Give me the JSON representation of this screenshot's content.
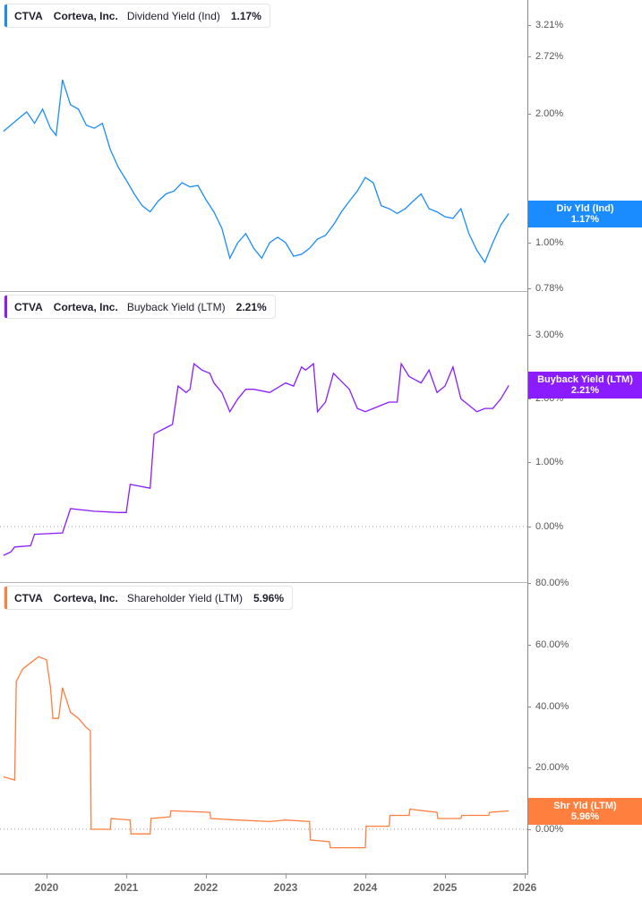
{
  "chart_data": [
    {
      "type": "line",
      "title": "CTVA Corteva, Inc. Dividend Yield (Ind)",
      "ticker": "CTVA",
      "company": "Corteva, Inc.",
      "metric": "Dividend Yield (Ind)",
      "current_value": "1.17%",
      "axis_label": "Div Yld (Ind)",
      "color": "#1a8cff",
      "scale": "log",
      "yticks": [
        "3.21%",
        "2.72%",
        "2.00%",
        "1.00%",
        "0.78%"
      ],
      "ylim": [
        0.78,
        3.4
      ],
      "x": [
        2019.46,
        2019.55,
        2019.65,
        2019.75,
        2019.85,
        2019.95,
        2020.05,
        2020.12,
        2020.2,
        2020.3,
        2020.4,
        2020.5,
        2020.6,
        2020.7,
        2020.8,
        2020.9,
        2021.0,
        2021.1,
        2021.2,
        2021.3,
        2021.4,
        2021.5,
        2021.6,
        2021.7,
        2021.8,
        2021.9,
        2022.0,
        2022.1,
        2022.2,
        2022.3,
        2022.4,
        2022.5,
        2022.6,
        2022.7,
        2022.8,
        2022.9,
        2023.0,
        2023.1,
        2023.2,
        2023.3,
        2023.4,
        2023.5,
        2023.6,
        2023.7,
        2023.8,
        2023.9,
        2024.0,
        2024.1,
        2024.2,
        2024.3,
        2024.4,
        2024.5,
        2024.6,
        2024.7,
        2024.8,
        2024.9,
        2025.0,
        2025.1,
        2025.2,
        2025.3,
        2025.4,
        2025.5,
        2025.6,
        2025.7,
        2025.8
      ],
      "values": [
        1.82,
        1.88,
        1.95,
        2.02,
        1.9,
        2.05,
        1.85,
        1.78,
        2.4,
        2.1,
        2.05,
        1.88,
        1.85,
        1.9,
        1.65,
        1.5,
        1.4,
        1.3,
        1.22,
        1.18,
        1.25,
        1.3,
        1.32,
        1.38,
        1.35,
        1.36,
        1.26,
        1.18,
        1.08,
        0.92,
        1.0,
        1.05,
        0.97,
        0.92,
        1.0,
        1.03,
        1.0,
        0.93,
        0.94,
        0.97,
        1.02,
        1.04,
        1.1,
        1.18,
        1.25,
        1.32,
        1.42,
        1.38,
        1.22,
        1.2,
        1.17,
        1.2,
        1.25,
        1.3,
        1.2,
        1.18,
        1.15,
        1.14,
        1.2,
        1.05,
        0.96,
        0.9,
        1.0,
        1.1,
        1.17
      ]
    },
    {
      "type": "line",
      "title": "CTVA Corteva, Inc. Buyback Yield (LTM)",
      "ticker": "CTVA",
      "company": "Corteva, Inc.",
      "metric": "Buyback Yield (LTM)",
      "current_value": "2.21%",
      "axis_label": "Buyback Yield (LTM)",
      "color": "#8a1cff",
      "scale": "linear",
      "yticks": [
        "3.00%",
        "2.00%",
        "1.00%",
        "0.00%"
      ],
      "ylim": [
        -0.5,
        3.7
      ],
      "x": [
        2019.46,
        2019.55,
        2019.6,
        2019.8,
        2019.85,
        2020.2,
        2020.3,
        2020.6,
        2020.9,
        2021.0,
        2021.05,
        2021.3,
        2021.35,
        2021.5,
        2021.58,
        2021.65,
        2021.75,
        2021.8,
        2021.85,
        2021.95,
        2022.05,
        2022.1,
        2022.2,
        2022.3,
        2022.4,
        2022.5,
        2022.6,
        2022.8,
        2023.0,
        2023.1,
        2023.2,
        2023.25,
        2023.35,
        2023.4,
        2023.5,
        2023.6,
        2023.8,
        2023.9,
        2024.0,
        2024.1,
        2024.2,
        2024.3,
        2024.4,
        2024.45,
        2024.55,
        2024.7,
        2024.8,
        2024.9,
        2025.0,
        2025.1,
        2025.2,
        2025.3,
        2025.4,
        2025.5,
        2025.6,
        2025.7,
        2025.8
      ],
      "values": [
        -0.45,
        -0.4,
        -0.32,
        -0.3,
        -0.12,
        -0.1,
        0.28,
        0.24,
        0.22,
        0.22,
        0.66,
        0.6,
        1.45,
        1.55,
        1.6,
        2.2,
        2.1,
        2.15,
        2.55,
        2.45,
        2.4,
        2.25,
        2.1,
        1.8,
        2.0,
        2.15,
        2.15,
        2.1,
        2.25,
        2.2,
        2.5,
        2.45,
        2.55,
        1.8,
        1.95,
        2.4,
        2.15,
        1.85,
        1.8,
        1.85,
        1.9,
        1.95,
        1.95,
        2.55,
        2.35,
        2.25,
        2.45,
        2.1,
        2.2,
        2.5,
        2.0,
        1.9,
        1.8,
        1.85,
        1.85,
        2.0,
        2.21
      ]
    },
    {
      "type": "line",
      "title": "CTVA Corteva, Inc. Shareholder Yield (LTM)",
      "ticker": "CTVA",
      "company": "Corteva, Inc.",
      "metric": "Shareholder Yield (LTM)",
      "current_value": "5.96%",
      "axis_label": "Shr Yld (LTM)",
      "color": "#ff7f3f",
      "scale": "linear",
      "yticks": [
        "80.00%",
        "60.00%",
        "40.00%",
        "20.00%",
        "0.00%"
      ],
      "ylim": [
        -15,
        80
      ],
      "x": [
        2019.46,
        2019.6,
        2019.62,
        2019.7,
        2019.8,
        2019.9,
        2020.0,
        2020.05,
        2020.08,
        2020.15,
        2020.2,
        2020.3,
        2020.4,
        2020.5,
        2020.55,
        2020.56,
        2020.8,
        2020.81,
        2021.05,
        2021.06,
        2021.3,
        2021.31,
        2021.55,
        2021.56,
        2022.05,
        2022.06,
        2022.4,
        2022.8,
        2023.0,
        2023.3,
        2023.31,
        2023.55,
        2023.56,
        2024.0,
        2024.01,
        2024.3,
        2024.31,
        2024.55,
        2024.56,
        2024.9,
        2024.91,
        2025.2,
        2025.21,
        2025.55,
        2025.56,
        2025.8
      ],
      "values": [
        17,
        16,
        48,
        52,
        54,
        56,
        55,
        46,
        36,
        36,
        46,
        38,
        36,
        33,
        32,
        0,
        0,
        3.5,
        3,
        -1.5,
        -1.5,
        3.5,
        4,
        6,
        5.5,
        3.5,
        3,
        2.5,
        3,
        2.5,
        -3.5,
        -4,
        -6,
        -6,
        1,
        1,
        4.5,
        4.5,
        6.5,
        5.5,
        3.5,
        3.5,
        4.5,
        4.5,
        5.5,
        5.96
      ]
    }
  ],
  "xaxis": {
    "labels": [
      "2020",
      "2021",
      "2022",
      "2023",
      "2024",
      "2025",
      "2026"
    ]
  },
  "legends": [
    {
      "ticker": "CTVA",
      "company": "Corteva, Inc.",
      "metric": "Dividend Yield (Ind)",
      "value": "1.17%"
    },
    {
      "ticker": "CTVA",
      "company": "Corteva, Inc.",
      "metric": "Buyback Yield (LTM)",
      "value": "2.21%"
    },
    {
      "ticker": "CTVA",
      "company": "Corteva, Inc.",
      "metric": "Shareholder Yield (LTM)",
      "value": "5.96%"
    }
  ],
  "price_labels": [
    {
      "name": "Div Yld (Ind)",
      "value": "1.17%"
    },
    {
      "name": "Buyback Yield (LTM)",
      "value": "2.21%"
    },
    {
      "name": "Shr Yld (LTM)",
      "value": "5.96%"
    }
  ],
  "colors": {
    "dividend": "#1a8cff",
    "buyback": "#8a1cff",
    "shareholder": "#ff7f3f"
  }
}
